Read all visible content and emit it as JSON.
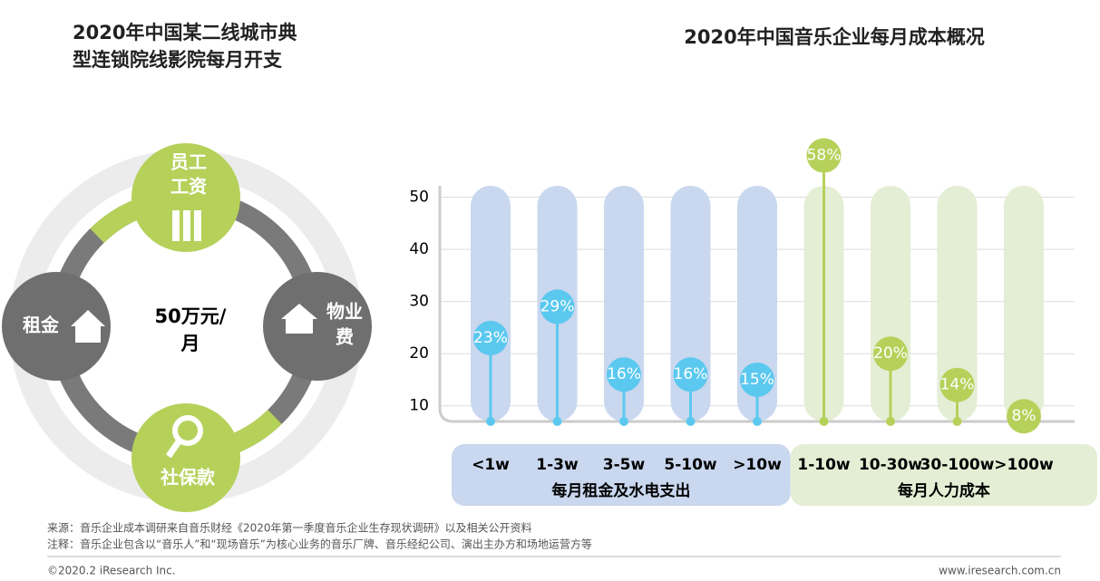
{
  "left_panel": {
    "title_lines": [
      "2020年中国某二线城市典",
      "型连锁院线影院每月开支"
    ],
    "center_lines": [
      "50万元/",
      "月"
    ],
    "items": [
      {
        "lines": [
          "员工",
          "工资"
        ]
      },
      {
        "lines": [
          "物业",
          "费"
        ]
      },
      {
        "lines": [
          "社保款"
        ]
      },
      {
        "lines": [
          "租金"
        ]
      }
    ]
  },
  "chart_data": {
    "type": "lollipop",
    "title": "2020年中国音乐企业每月成本概况",
    "ylim": [
      7,
      60
    ],
    "yticks": [
      10,
      20,
      30,
      40,
      50
    ],
    "grid": true,
    "groups": [
      {
        "name": "每月租金及水电支出",
        "color": "#5bc8ef",
        "band_color": "#c9d7ef",
        "categories": [
          "<1w",
          "1-3w",
          "3-5w",
          "5-10w",
          ">10w"
        ],
        "values": [
          23,
          29,
          16,
          16,
          15
        ],
        "value_labels": [
          "23%",
          "29%",
          "16%",
          "16%",
          "15%"
        ]
      },
      {
        "name": "每月人力成本",
        "color": "#b5d15a",
        "band_color": "#e4eed5",
        "categories": [
          "1-10w",
          "10-30w",
          "30-100w",
          ">100w"
        ],
        "values": [
          58,
          20,
          14,
          8
        ],
        "value_labels": [
          "58%",
          "20%",
          "14%",
          "8%"
        ]
      }
    ]
  },
  "footer": {
    "source": "来源：音乐企业成本调研来自音乐财经《2020年第一季度音乐企业生存现状调研》以及相关公开资料",
    "note": "注释：音乐企业包含以“音乐人”和“现场音乐”为核心业务的音乐厂牌、音乐经纪公司、演出主办方和场地运营方等",
    "copyright": "©2020.2 iResearch Inc.",
    "url": "www.iresearch.com.cn"
  }
}
